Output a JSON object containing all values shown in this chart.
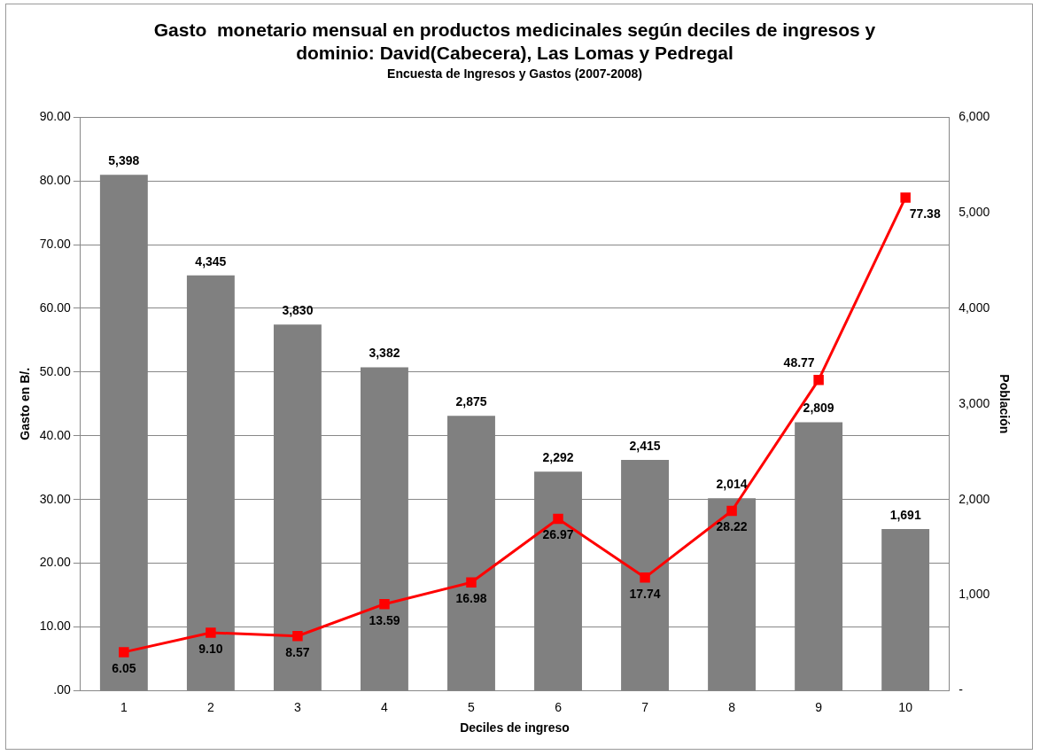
{
  "chart_data": {
    "type": "bar",
    "title": "Gasto  monetario mensual en productos medicinales según deciles de ingresos y dominio: David(Cabecera), Las Lomas y Pedregal",
    "subtitle": "Encuesta de Ingresos y Gastos (2007-2008)",
    "xlabel": "Deciles de ingreso",
    "ylabel": "Gasto en B/.",
    "y2label": "Población",
    "categories": [
      "1",
      "2",
      "3",
      "4",
      "5",
      "6",
      "7",
      "8",
      "9",
      "10"
    ],
    "series": [
      {
        "axis": "y2",
        "color": "#808080",
        "values": [
          5398,
          4345,
          3830,
          3382,
          2875,
          2292,
          2415,
          2014,
          2809,
          1691
        ],
        "value_labels": [
          "5,398",
          "4,345",
          "3,830",
          "3,382",
          "2,875",
          "2,292",
          "2,415",
          "2,014",
          "2,809",
          "1,691"
        ]
      },
      {
        "type": "line",
        "axis": "y",
        "color": "#ff0000",
        "marker": "square",
        "values": [
          6.05,
          9.1,
          8.57,
          13.59,
          16.98,
          26.97,
          17.74,
          28.22,
          48.77,
          77.38
        ],
        "value_labels": [
          "6.05",
          "9.10",
          "8.57",
          "13.59",
          "16.98",
          "26.97",
          "17.74",
          "28.22",
          "48.77",
          "77.38"
        ]
      }
    ],
    "ylim": [
      0,
      90
    ],
    "yticks": [
      {
        "value": 0,
        "label": ".00"
      },
      {
        "value": 10,
        "label": "10.00"
      },
      {
        "value": 20,
        "label": "20.00"
      },
      {
        "value": 30,
        "label": "30.00"
      },
      {
        "value": 40,
        "label": "40.00"
      },
      {
        "value": 50,
        "label": "50.00"
      },
      {
        "value": 60,
        "label": "60.00"
      },
      {
        "value": 70,
        "label": "70.00"
      },
      {
        "value": 80,
        "label": "80.00"
      },
      {
        "value": 90,
        "label": "90.00"
      }
    ],
    "y2lim": [
      0,
      6000
    ],
    "y2ticks": [
      {
        "value": 0,
        "label": "-"
      },
      {
        "value": 1000,
        "label": "1,000"
      },
      {
        "value": 2000,
        "label": "2,000"
      },
      {
        "value": 3000,
        "label": "3,000"
      },
      {
        "value": 4000,
        "label": "4,000"
      },
      {
        "value": 5000,
        "label": "5,000"
      },
      {
        "value": 6000,
        "label": "6,000"
      }
    ],
    "grid": "y",
    "legend": false
  }
}
